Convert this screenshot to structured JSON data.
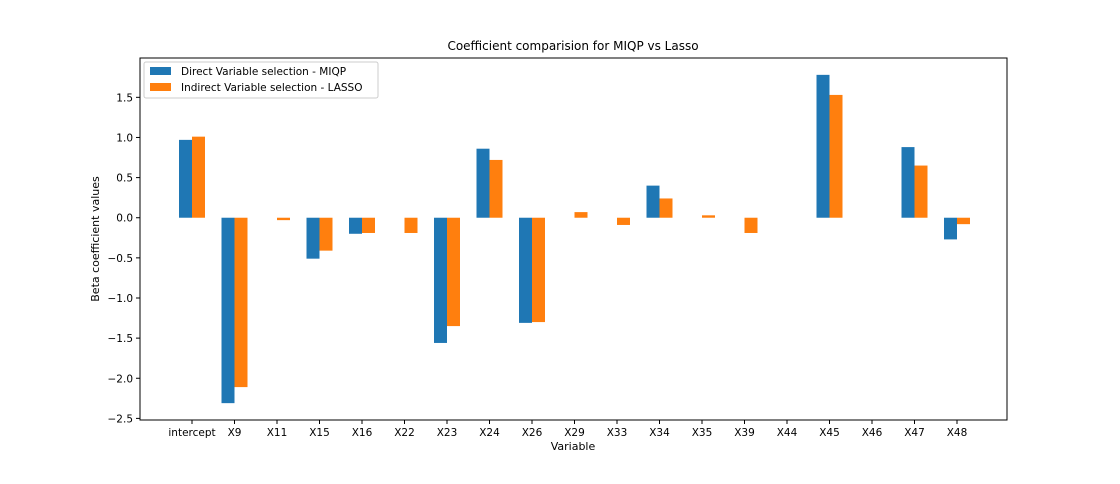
{
  "chart_data": {
    "type": "bar",
    "title": "Coefficient comparision for MIQP vs Lasso",
    "xlabel": "Variable",
    "ylabel": "Beta coefficient values",
    "categories": [
      "intercept",
      "X9",
      "X11",
      "X15",
      "X16",
      "X22",
      "X23",
      "X24",
      "X26",
      "X29",
      "X33",
      "X34",
      "X35",
      "X39",
      "X44",
      "X45",
      "X46",
      "X47",
      "X48"
    ],
    "series": [
      {
        "name": "Direct Variable selection - MIQP",
        "color": "#1f77b4",
        "values": [
          0.97,
          -2.31,
          0,
          -0.51,
          -0.2,
          0,
          -1.56,
          0.86,
          -1.31,
          0,
          0,
          0.4,
          0,
          0,
          0,
          1.78,
          0,
          0.88,
          -0.27
        ]
      },
      {
        "name": "Indirect Variable selection - LASSO",
        "color": "#ff7f0e",
        "values": [
          1.01,
          -2.11,
          -0.03,
          -0.41,
          -0.19,
          -0.19,
          -1.35,
          0.72,
          -1.3,
          0.07,
          -0.09,
          0.24,
          0.03,
          -0.19,
          0,
          1.53,
          0,
          0.65,
          -0.08
        ]
      }
    ],
    "ylim": [
      -2.52,
      1.99
    ],
    "yticks": [
      -2.5,
      -2.0,
      -1.5,
      -1.0,
      -0.5,
      0.0,
      0.5,
      1.0,
      1.5
    ],
    "ytick_labels": [
      "−2.5",
      "−2.0",
      "−1.5",
      "−1.0",
      "−0.5",
      "0.0",
      "0.5",
      "1.0",
      "1.5"
    ],
    "legend_position": "top-left",
    "grid": false
  }
}
